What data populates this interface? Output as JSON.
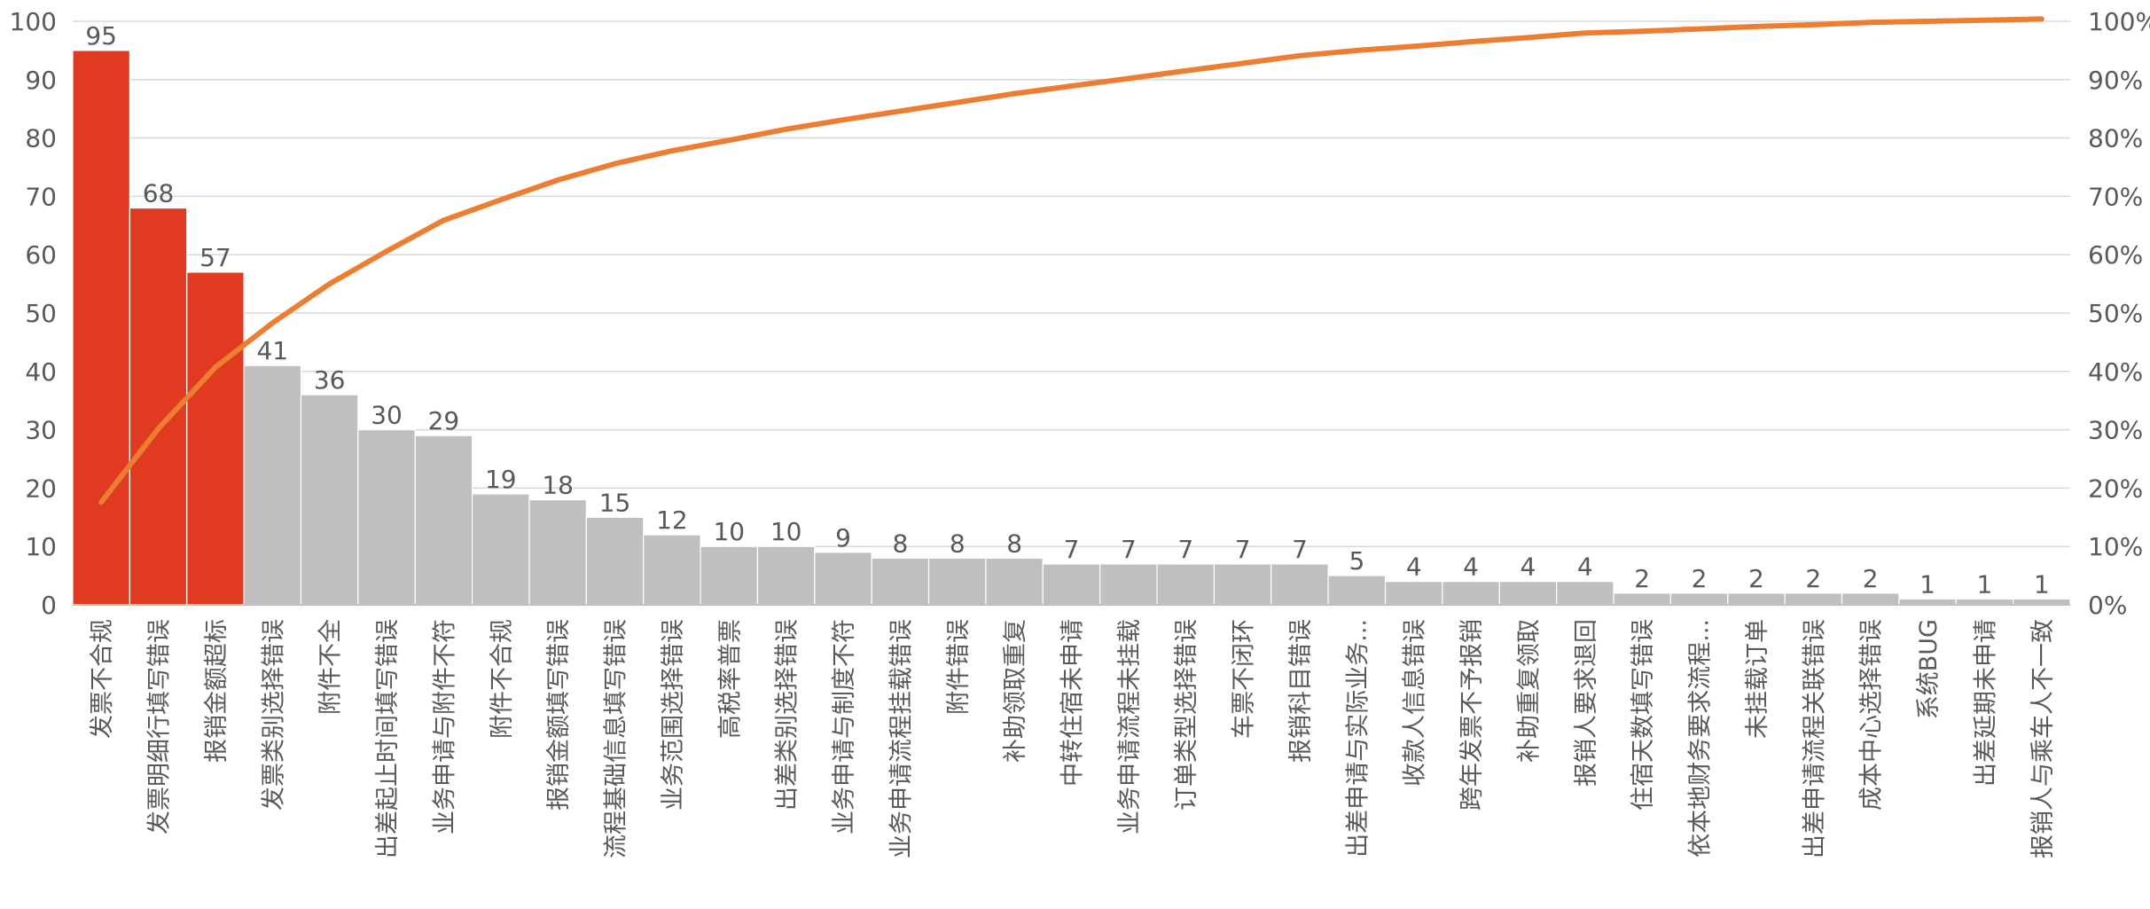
{
  "chart_data": {
    "type": "bar",
    "subtype": "pareto",
    "categories": [
      "发票不合规",
      "发票明细行填写错误",
      "报销金额超标",
      "发票类别选择错误",
      "附件不全",
      "出差起止时间填写错误",
      "业务申请与附件不符",
      "附件不合规",
      "报销金额填写错误",
      "流程基础信息填写错误",
      "业务范围选择错误",
      "高税率普票",
      "出差类别选择错误",
      "业务申请与制度不符",
      "业务申请流程挂载错误",
      "附件错误",
      "补助领取重复",
      "中转住宿未申请",
      "业务申请流程未挂载",
      "订单类型选择错误",
      "车票不闭环",
      "报销科目错误",
      "出差申请与实际业务...",
      "收款人信息错误",
      "跨年发票不予报销",
      "补助重复领取",
      "报销人要求退回",
      "住宿天数填写错误",
      "依本地财务要求流程...",
      "未挂载订单",
      "出差申请流程关联错误",
      "成本中心选择错误",
      "系统BUG",
      "出差延期未申请",
      "报销人与乘车人不一致"
    ],
    "series": [
      {
        "values": [
          95,
          68,
          57,
          41,
          36,
          30,
          29,
          19,
          18,
          15,
          12,
          10,
          10,
          9,
          8,
          8,
          8,
          7,
          7,
          7,
          7,
          7,
          5,
          4,
          4,
          4,
          4,
          2,
          2,
          2,
          2,
          2,
          1,
          1,
          1
        ]
      },
      {
        "type": "line",
        "axis": "right",
        "values": [
          17.6,
          30.2,
          40.7,
          48.3,
          55.0,
          60.6,
          65.9,
          69.4,
          72.8,
          75.6,
          77.8,
          79.6,
          81.5,
          83.1,
          84.6,
          86.1,
          87.6,
          88.9,
          90.2,
          91.5,
          92.8,
          94.1,
          95.0,
          95.7,
          96.5,
          97.2,
          98.0,
          98.3,
          98.7,
          99.1,
          99.4,
          99.8,
          100.0,
          100.2,
          100.4
        ]
      }
    ],
    "ylim": [
      0,
      100
    ],
    "y_ticks": [
      "0",
      "10",
      "20",
      "30",
      "40",
      "50",
      "60",
      "70",
      "80",
      "90",
      "100"
    ],
    "y2lim": [
      0,
      100
    ],
    "y2_ticks": [
      "0%",
      "10%",
      "20%",
      "30%",
      "40%",
      "50%",
      "60%",
      "70%",
      "80%",
      "90%",
      "100%"
    ],
    "highlight_count": 3,
    "colors": {
      "highlight": "#E03A21",
      "bar": "#BFBFBF",
      "line": "#ED7D31",
      "grid": "#D9D9D9",
      "axis": "#BFBFBF",
      "text": "#595959"
    },
    "grid": true,
    "legend": "none"
  }
}
